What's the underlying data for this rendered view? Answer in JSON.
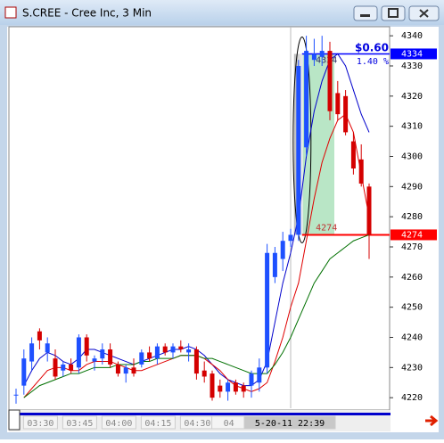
{
  "chart_data": {
    "type": "candlestick",
    "title": "S.CREE - Cree Inc, 3 Min",
    "categories": [
      null,
      null,
      null,
      "03:30",
      null,
      null,
      null,
      null,
      "03:45",
      null,
      null,
      null,
      null,
      "04:00",
      null,
      null,
      null,
      null,
      "04:15",
      null,
      null,
      null,
      null,
      "04:30",
      null,
      null,
      null,
      "04",
      null,
      null,
      null,
      null,
      null,
      null,
      null,
      "5-20-11 22:39",
      null,
      null,
      null,
      null,
      null,
      null,
      null,
      null,
      null,
      null
    ],
    "ohlc": [
      [
        4221,
        4223,
        4218,
        4221
      ],
      [
        4224,
        4236,
        4221,
        4233
      ],
      [
        4232,
        4240,
        4229,
        4238
      ],
      [
        4242,
        4243,
        4236,
        4239
      ],
      [
        4235,
        4240,
        4232,
        4238
      ],
      [
        4233,
        4236,
        4226,
        4227
      ],
      [
        4229,
        4232,
        4227,
        4231
      ],
      [
        4231,
        4233,
        4228,
        4229
      ],
      [
        4230,
        4241,
        4228,
        4240
      ],
      [
        4240,
        4241,
        4232,
        4234
      ],
      [
        4232,
        4234,
        4229,
        4233
      ],
      [
        4233,
        4238,
        4231,
        4236
      ],
      [
        4236,
        4238,
        4230,
        4231
      ],
      [
        4231,
        4232,
        4227,
        4228
      ],
      [
        4228,
        4231,
        4225,
        4230
      ],
      [
        4230,
        4233,
        4227,
        4228
      ],
      [
        4231,
        4236,
        4230,
        4235
      ],
      [
        4235,
        4237,
        4232,
        4233
      ],
      [
        4233,
        4238,
        4231,
        4237
      ],
      [
        4237,
        4238,
        4234,
        4235
      ],
      [
        4235,
        4238,
        4233,
        4237
      ],
      [
        4237,
        4239,
        4235,
        4236
      ],
      [
        4235,
        4238,
        4232,
        4236
      ],
      [
        4236,
        4237,
        4226,
        4228
      ],
      [
        4229,
        4232,
        4225,
        4227
      ],
      [
        4228,
        4229,
        4219,
        4220
      ],
      [
        4224,
        4226,
        4220,
        4222
      ],
      [
        4222,
        4226,
        4219,
        4225
      ],
      [
        4225,
        4226,
        4221,
        4222
      ],
      [
        4224,
        4225,
        4220,
        4222
      ],
      [
        4224,
        4229,
        4220,
        4228
      ],
      [
        4225,
        4233,
        4222,
        4230
      ],
      [
        4230,
        4271,
        4228,
        4268
      ],
      [
        4260,
        4270,
        4258,
        4268
      ],
      [
        4266,
        4275,
        4262,
        4272
      ],
      [
        4272,
        4276,
        4270,
        4274
      ],
      [
        4274,
        4332,
        4272,
        4330
      ],
      [
        4303,
        4340,
        4300,
        4335
      ],
      [
        4332,
        4339,
        4330,
        4334
      ],
      [
        4333,
        4340,
        4330,
        4335
      ],
      [
        4335,
        4338,
        4312,
        4315
      ],
      [
        4321,
        4325,
        4312,
        4314
      ],
      [
        4320,
        4322,
        4307,
        4308
      ],
      [
        4305,
        4308,
        4294,
        4296
      ],
      [
        4299,
        4304,
        4290,
        4291
      ],
      [
        4290,
        4291,
        4266,
        4274
      ]
    ],
    "up_color": "#1e50ff",
    "down_color": "#d40000",
    "moving_averages": [
      {
        "color": "#0000cc",
        "values": [
          null,
          4224,
          4229,
          4233,
          4235,
          4234,
          4232,
          4231,
          4233,
          4236,
          4236,
          4235,
          4234,
          4233,
          4232,
          4231,
          4232,
          4233,
          4234,
          4235,
          4236,
          4236,
          4237,
          4236,
          4234,
          4231,
          4228,
          4226,
          4225,
          4224,
          4224,
          4226,
          4232,
          4245,
          4258,
          4268,
          4280,
          4300,
          4315,
          4325,
          4332,
          4334,
          4330,
          4322,
          4314,
          4308
        ]
      },
      {
        "color": "#e00000",
        "values": [
          null,
          4220,
          4223,
          4226,
          4229,
          4230,
          4230,
          4229,
          4229,
          4231,
          4232,
          4232,
          4232,
          4231,
          4230,
          4229,
          4229,
          4230,
          4231,
          4232,
          4233,
          4234,
          4234,
          4234,
          4233,
          4231,
          4229,
          4226,
          4224,
          4223,
          4222,
          4223,
          4225,
          4232,
          4240,
          4250,
          4258,
          4272,
          4286,
          4298,
          4306,
          4312,
          4314,
          4308,
          4294,
          4280
        ]
      },
      {
        "color": "#007000",
        "values": [
          null,
          4220,
          4222,
          4224,
          4225,
          4226,
          4227,
          4228,
          4228,
          4229,
          4230,
          4230,
          4230,
          4231,
          4231,
          4231,
          4232,
          4232,
          4233,
          4233,
          4233,
          4234,
          4234,
          4234,
          4233,
          4233,
          4232,
          4231,
          4230,
          4229,
          4228,
          4228,
          4228,
          4231,
          4235,
          4240,
          4246,
          4252,
          4258,
          4262,
          4266,
          4268,
          4270,
          4272,
          4273,
          4274
        ]
      }
    ],
    "price_lines": [
      {
        "value": 4334,
        "color": "#0000ff"
      },
      {
        "value": 4274,
        "color": "#ff0000"
      }
    ],
    "annotations": [
      "$0.60",
      "1.40 %"
    ],
    "ylim": [
      4216.5,
      4343
    ],
    "yticks": [
      4220,
      4230,
      4240,
      4250,
      4260,
      4270,
      4280,
      4290,
      4300,
      4310,
      4320,
      4330,
      4340
    ]
  }
}
